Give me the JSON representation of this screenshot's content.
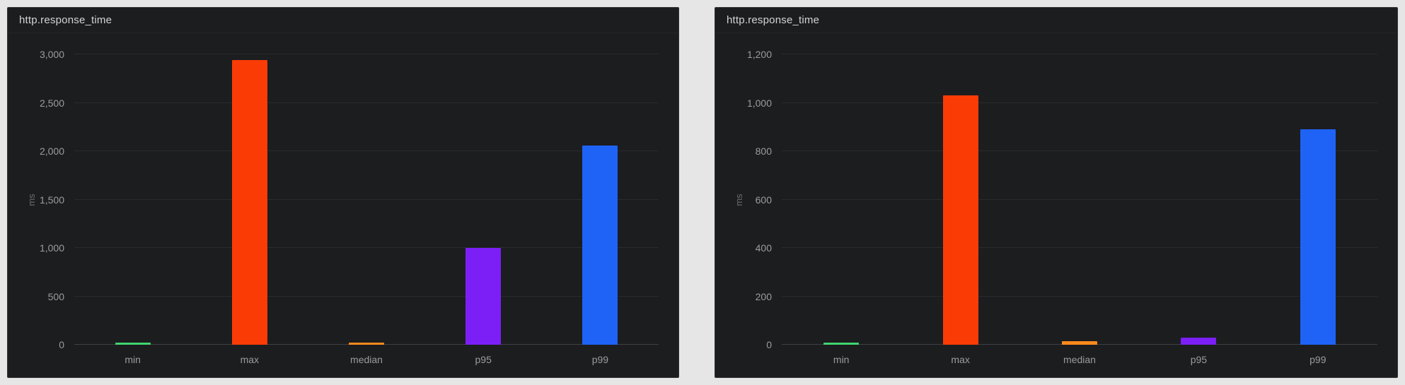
{
  "chart_data": [
    {
      "type": "bar",
      "title": "http.response_time",
      "xlabel": "",
      "ylabel": "ms",
      "categories": [
        "min",
        "max",
        "median",
        "p95",
        "p99"
      ],
      "values": [
        10,
        2940,
        12,
        1000,
        2060
      ],
      "colors": [
        "#3fd56f",
        "#fa3b05",
        "#ff8b1c",
        "#7c1ff7",
        "#1e63f5"
      ],
      "ylim": [
        0,
        3000
      ],
      "yticks": [
        0,
        500,
        1000,
        1500,
        2000,
        2500,
        3000
      ],
      "ytick_labels": [
        "0",
        "500",
        "1,000",
        "1,500",
        "2,000",
        "2,500",
        "3,000"
      ],
      "grid": true,
      "legend": "none",
      "background": "#1c1d1f"
    },
    {
      "type": "bar",
      "title": "http.response_time",
      "xlabel": "",
      "ylabel": "ms",
      "categories": [
        "min",
        "max",
        "median",
        "p95",
        "p99"
      ],
      "values": [
        10,
        1030,
        14,
        30,
        890
      ],
      "colors": [
        "#3fd56f",
        "#fa3b05",
        "#ff8b1c",
        "#7c1ff7",
        "#1e63f5"
      ],
      "ylim": [
        0,
        1200
      ],
      "yticks": [
        0,
        200,
        400,
        600,
        800,
        1000,
        1200
      ],
      "ytick_labels": [
        "0",
        "200",
        "400",
        "600",
        "800",
        "1,000",
        "1,200"
      ],
      "grid": true,
      "legend": "none",
      "background": "#1c1d1f"
    }
  ]
}
